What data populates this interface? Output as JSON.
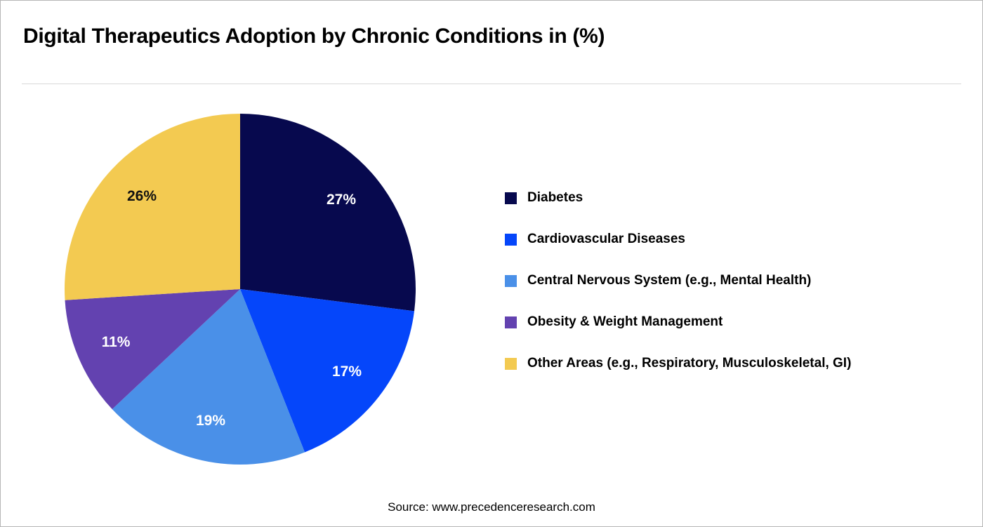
{
  "header": {
    "title": "Digital Therapeutics Adoption by Chronic Conditions in (%)"
  },
  "source": {
    "text": "Source: www.precedenceresearch.com"
  },
  "chart_data": {
    "type": "pie",
    "title": "Digital Therapeutics Adoption by Chronic Conditions in (%)",
    "categories": [
      "Diabetes",
      "Cardiovascular Diseases",
      "Central Nervous System (e.g., Mental Health)",
      "Obesity & Weight Management",
      "Other Areas (e.g., Respiratory, Musculoskeletal, GI)"
    ],
    "values": [
      27,
      17,
      19,
      11,
      26
    ],
    "labels": [
      "27%",
      "17%",
      "19%",
      "11%",
      "26%"
    ],
    "colors": [
      "#07094e",
      "#0546fa",
      "#4a90e8",
      "#6342b0",
      "#f3ca51"
    ],
    "label_colors": [
      "#ffffff",
      "#ffffff",
      "#ffffff",
      "#ffffff",
      "#111111"
    ],
    "start_angle_deg": 0,
    "direction": "clockwise",
    "legend_position": "right",
    "unit": "%"
  }
}
